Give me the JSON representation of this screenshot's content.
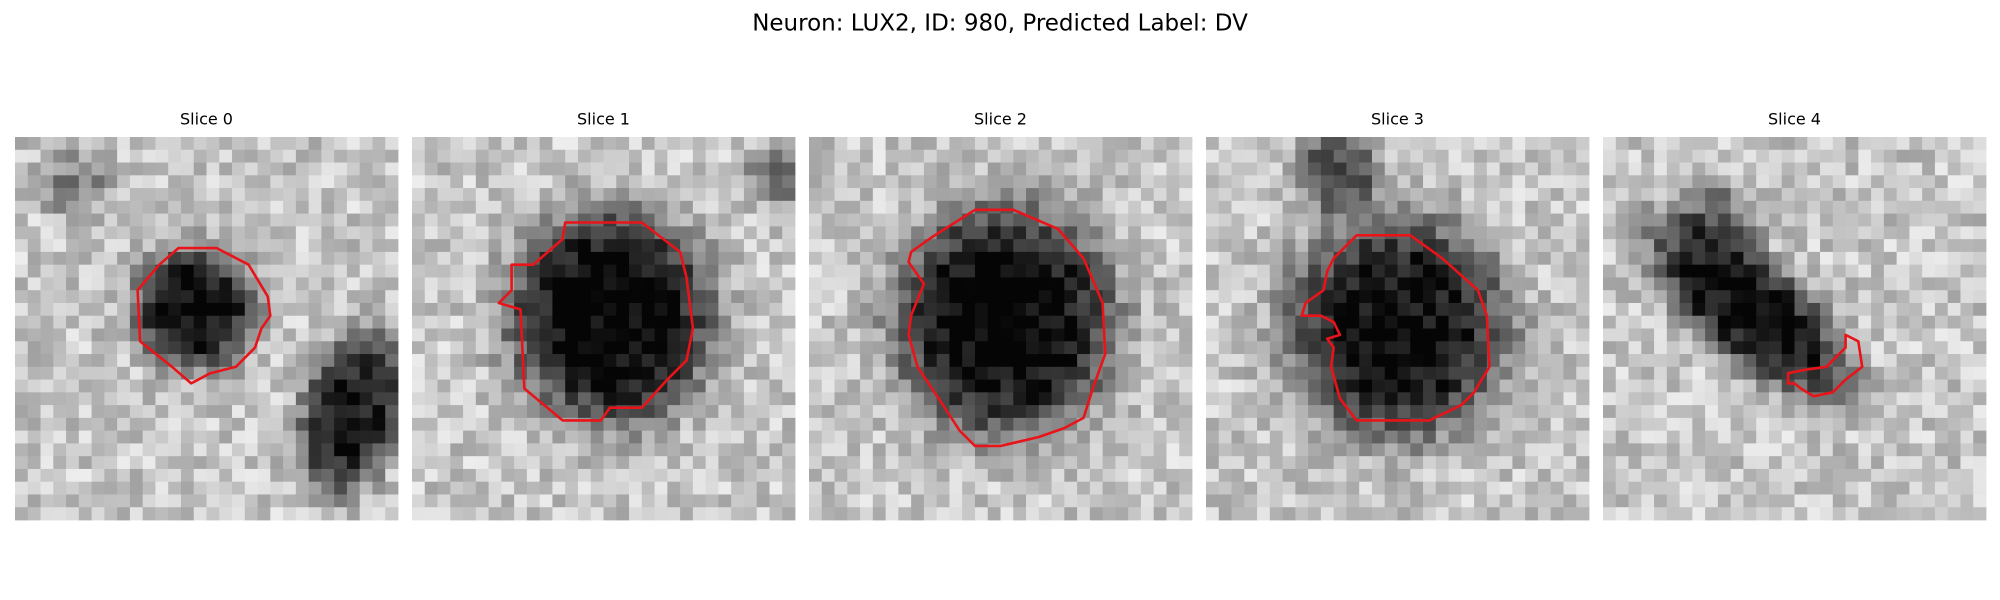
{
  "title": "Neuron: LUX2, ID: 980, Predicted Label: DV",
  "panels": [
    {
      "title": "Slice 0"
    },
    {
      "title": "Slice 1"
    },
    {
      "title": "Slice 2"
    },
    {
      "title": "Slice 3"
    },
    {
      "title": "Slice 4"
    }
  ]
}
